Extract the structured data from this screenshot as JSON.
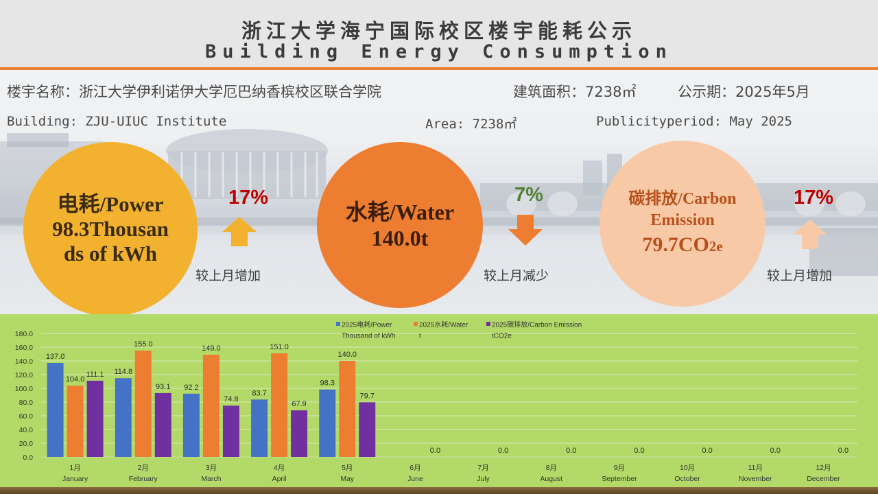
{
  "header": {
    "title_cn": "浙江大学海宁国际校区楼宇能耗公示",
    "title_en": "Building Energy Consumption"
  },
  "info": {
    "building_cn": "楼宇名称：浙江大学伊利诺伊大学厄巴纳香槟校区联合学院",
    "area_cn": "建筑面积：7238㎡",
    "period_cn": "公示期：2025年5月",
    "building_en": "Building: ZJU-UIUC Institute",
    "area_en": "Area: 7238㎡",
    "period_en": "Publicityperiod: May 2025"
  },
  "colors": {
    "power": "#f2b230",
    "water": "#ed7d31",
    "carbon": "#f8c9a6",
    "increase": "#c00000",
    "decrease": "#548235",
    "bar_power": "#4472c4",
    "bar_water": "#ed7d31",
    "bar_carbon": "#7030a0",
    "chart_bg": "#b3d968"
  },
  "kpis": {
    "power": {
      "line1": "电耗/Power",
      "line2": "98.3Thousan",
      "line3": "ds of kWh",
      "change": "17%",
      "direction": "up",
      "compare": "较上月增加",
      "icon": "arrow-up-icon"
    },
    "water": {
      "line1": "水耗/Water",
      "line2": "140.0t",
      "change": "7%",
      "direction": "down",
      "compare": "较上月减少",
      "icon": "arrow-down-icon"
    },
    "carbon": {
      "line1": "碳排放/Carbon",
      "line2": "Emission",
      "line3": "79.7CO",
      "line3_sub": "2e",
      "change": "17%",
      "direction": "up",
      "compare": "较上月增加",
      "icon": "arrow-up-icon"
    }
  },
  "chart_data": {
    "type": "bar",
    "categories": [
      [
        "1月",
        "January"
      ],
      [
        "2月",
        "February"
      ],
      [
        "3月",
        "March"
      ],
      [
        "4月",
        "April"
      ],
      [
        "5月",
        "May"
      ],
      [
        "6月",
        "June"
      ],
      [
        "7月",
        "July"
      ],
      [
        "8月",
        "August"
      ],
      [
        "9月",
        "September"
      ],
      [
        "10月",
        "October"
      ],
      [
        "11月",
        "November"
      ],
      [
        "12月",
        "December"
      ]
    ],
    "series": [
      {
        "name": "2025电耗/Power",
        "name2": "Thousand of kWh",
        "color": "#4472c4",
        "values": [
          137.0,
          114.8,
          92.2,
          83.7,
          98.3,
          null,
          null,
          null,
          null,
          null,
          null,
          null
        ]
      },
      {
        "name": "2025水耗/Water",
        "name2": "t",
        "color": "#ed7d31",
        "values": [
          104.0,
          155.0,
          149.0,
          151.0,
          140.0,
          null,
          null,
          null,
          null,
          null,
          null,
          null
        ]
      },
      {
        "name": "2025碳排放/Carbon Emission",
        "name2": "tCO2e",
        "color": "#7030a0",
        "values": [
          111.1,
          93.1,
          74.8,
          67.9,
          79.7,
          0.0,
          0.0,
          0.0,
          0.0,
          0.0,
          0.0,
          0.0
        ]
      }
    ],
    "ylim": [
      0,
      180
    ],
    "yticks": [
      "0.0",
      "20.0",
      "40.0",
      "60.0",
      "80.0",
      "100.0",
      "120.0",
      "140.0",
      "160.0",
      "180.0"
    ],
    "grid": true,
    "legend": "top-center",
    "title": "",
    "xlabel": "",
    "ylabel": ""
  }
}
